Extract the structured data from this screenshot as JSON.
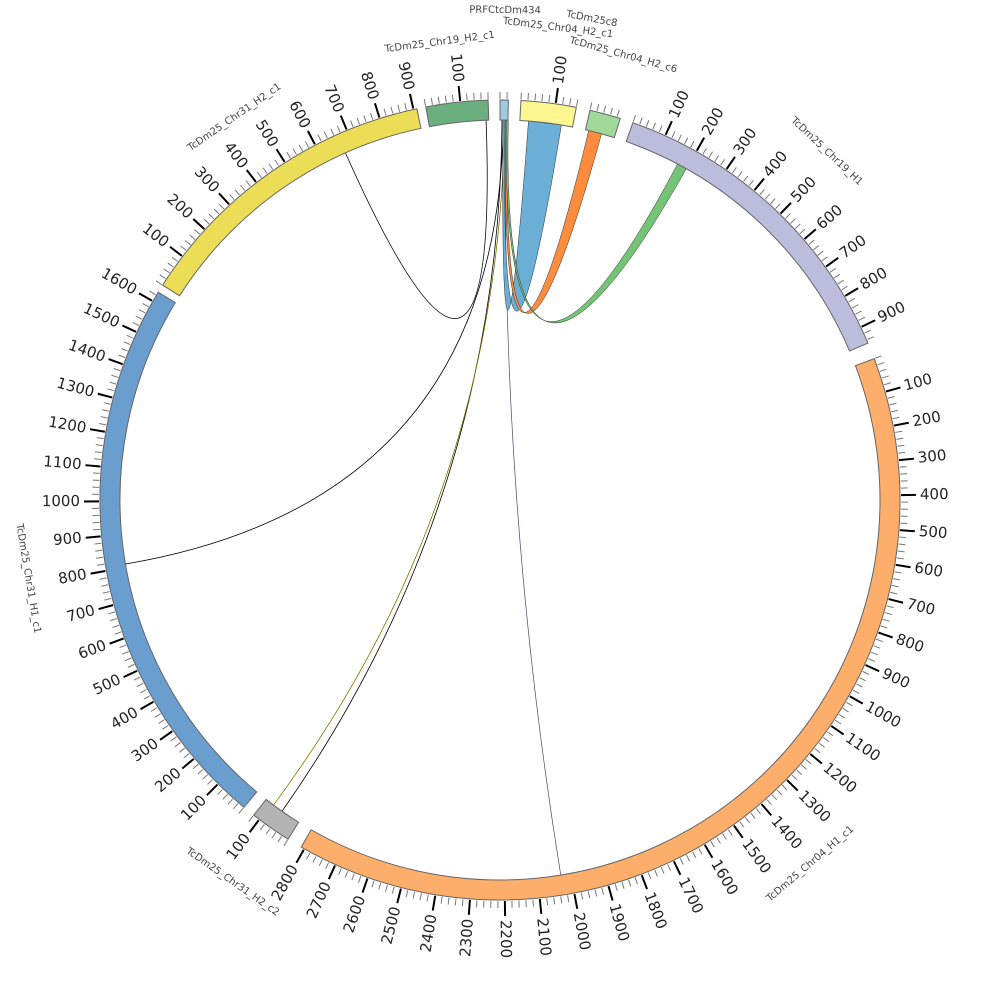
{
  "chart_data": {
    "type": "chord",
    "tick_major_step": 100,
    "tick_minor_step": 20,
    "segments": [
      {
        "name": "PRFCtcDm434",
        "length": 24,
        "color": "#9ecae1"
      },
      {
        "name": "TcDm25_Chr04_H2_c1",
        "length": 160,
        "color": "#fff68f"
      },
      {
        "name": "TcDm25_Chr04_H2_c6",
        "length": 90,
        "color": "#a1d99b"
      },
      {
        "name": "TcDm25_Chr19_H1",
        "length": 950,
        "color": "#bcbddc"
      },
      {
        "name": "TcDm25_Chr04_H1_c1",
        "length": 2810,
        "color": "#fdae6b"
      },
      {
        "name": "TcDm25_Chr31_H2_c2",
        "length": 120,
        "color": "#b3b3b3"
      },
      {
        "name": "TcDm25_Chr31_H1_c1",
        "length": 1630,
        "color": "#6a9ecf"
      },
      {
        "name": "TcDm25_Chr31_H2_c1",
        "length": 910,
        "color": "#ebdd55"
      },
      {
        "name": "TcDm25_Chr19_H2_c1",
        "length": 180,
        "color": "#6baf7f"
      }
    ],
    "extra_labels": [
      "TcDm25c8"
    ],
    "links": [
      {
        "from": [
          7,
          670
        ],
        "to": [
          8,
          172
        ],
        "color": "#000000"
      },
      {
        "from": [
          6,
          810
        ],
        "to": [
          0,
          10
        ],
        "color": "#000000"
      },
      {
        "from": [
          5,
          60
        ],
        "to": [
          0,
          6
        ],
        "color": "#000000"
      },
      {
        "from": [
          5,
          92
        ],
        "to": [
          0,
          14
        ],
        "color": "#c8b400"
      },
      {
        "from": [
          4,
          2030
        ],
        "to": [
          0,
          18
        ],
        "color": "#9e9ac8"
      },
      {
        "from": [
          1,
          76
        ],
        "to": [
          0,
          12
        ],
        "color": "#6baed6",
        "width": 10
      },
      {
        "from": [
          2,
          30
        ],
        "to": [
          0,
          20
        ],
        "color": "#fd8d3c",
        "width": 4
      },
      {
        "from": [
          3,
          184
        ],
        "to": [
          0,
          22
        ],
        "color": "#74c476",
        "width": 3
      }
    ]
  }
}
